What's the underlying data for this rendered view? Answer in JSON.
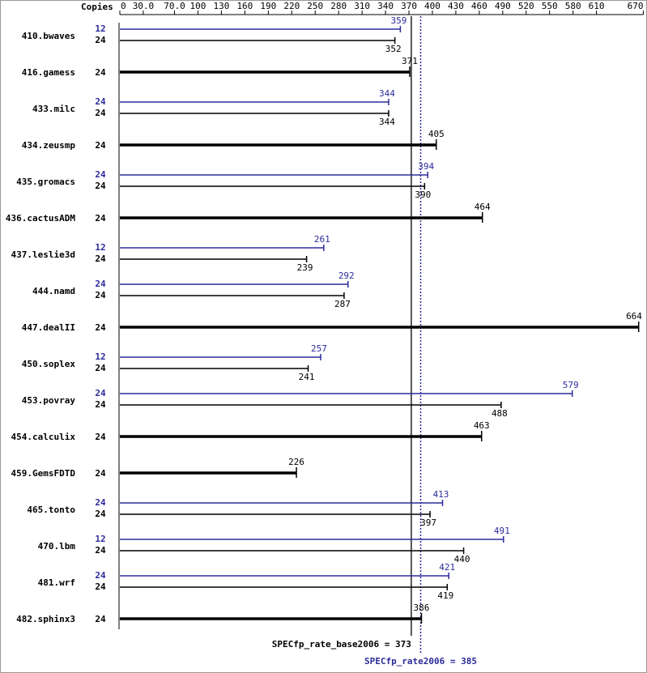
{
  "chart_data": {
    "type": "spec-bar",
    "axis_label": "Copies",
    "categories": [
      "410.bwaves",
      "416.gamess",
      "433.milc",
      "434.zeusmp",
      "435.gromacs",
      "436.cactusADM",
      "437.leslie3d",
      "444.namd",
      "447.dealII",
      "450.soplex",
      "453.povray",
      "454.calculix",
      "459.GemsFDTD",
      "465.tonto",
      "470.lbm",
      "481.wrf",
      "482.sphinx3"
    ],
    "series": [
      {
        "color": "#000000",
        "copies": [
          24,
          24,
          24,
          24,
          24,
          24,
          24,
          24,
          24,
          24,
          24,
          24,
          24,
          24,
          24,
          24,
          24
        ],
        "values": [
          352,
          371,
          344,
          405,
          390,
          464,
          239,
          287,
          664,
          241,
          488,
          463,
          226,
          397,
          440,
          419,
          386
        ]
      },
      {
        "color": "#2b2b9b",
        "copies": [
          12,
          null,
          24,
          null,
          24,
          null,
          12,
          24,
          null,
          12,
          24,
          null,
          null,
          24,
          12,
          24,
          null
        ],
        "values": [
          359,
          null,
          344,
          null,
          394,
          null,
          261,
          292,
          null,
          257,
          579,
          null,
          null,
          413,
          491,
          421,
          null
        ]
      }
    ],
    "xlim": [
      0,
      670
    ],
    "xticks": [
      0,
      {
        "value": 30,
        "label": "30.0"
      },
      {
        "value": 70,
        "label": "70.0"
      },
      100,
      130,
      160,
      190,
      220,
      250,
      280,
      310,
      340,
      370,
      400,
      430,
      460,
      490,
      520,
      550,
      580,
      610,
      670
    ],
    "reference_lines": [
      {
        "label": "SPECfp_rate_base2006 = 373",
        "value": 373,
        "color": "#000000",
        "style": "solid"
      },
      {
        "label": "SPECfp_rate2006 = 385",
        "value": 385,
        "color": "#2b2b9b",
        "style": "dotted"
      }
    ]
  }
}
